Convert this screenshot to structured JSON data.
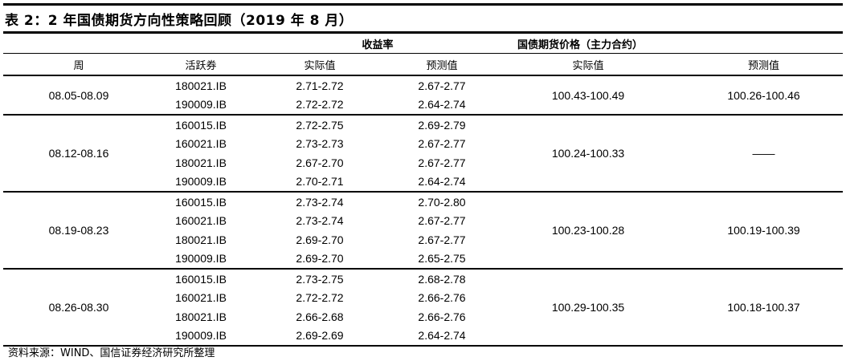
{
  "title": "表 2：2 年国债期货方向性策略回顾（2019 年 8 月）",
  "header": {
    "group_yield": "收益率",
    "group_price": "国债期货价格（主力合约）",
    "columns": [
      "周",
      "活跃券",
      "实际值",
      "预测值",
      "实际值",
      "预测值"
    ]
  },
  "groups": [
    {
      "week": "08.05-08.09",
      "price_actual": "100.43-100.49",
      "price_forecast": "100.26-100.46",
      "rows": [
        [
          "180021.IB",
          "2.71-2.72",
          "2.67-2.77"
        ],
        [
          "190009.IB",
          "2.72-2.72",
          "2.64-2.74"
        ]
      ]
    },
    {
      "week": "08.12-08.16",
      "price_actual": "100.24-100.33",
      "price_forecast": "——",
      "rows": [
        [
          "160015.IB",
          "2.72-2.75",
          "2.69-2.79"
        ],
        [
          "160021.IB",
          "2.73-2.73",
          "2.67-2.77"
        ],
        [
          "180021.IB",
          "2.67-2.70",
          "2.67-2.77"
        ],
        [
          "190009.IB",
          "2.70-2.71",
          "2.64-2.74"
        ]
      ]
    },
    {
      "week": "08.19-08.23",
      "price_actual": "100.23-100.28",
      "price_forecast": "100.19-100.39",
      "rows": [
        [
          "160015.IB",
          "2.73-2.74",
          "2.70-2.80"
        ],
        [
          "160021.IB",
          "2.73-2.74",
          "2.67-2.77"
        ],
        [
          "180021.IB",
          "2.69-2.70",
          "2.67-2.77"
        ],
        [
          "190009.IB",
          "2.69-2.70",
          "2.65-2.75"
        ]
      ]
    },
    {
      "week": "08.26-08.30",
      "price_actual": "100.29-100.35",
      "price_forecast": "100.18-100.37",
      "rows": [
        [
          "160015.IB",
          "2.73-2.75",
          "2.68-2.78"
        ],
        [
          "160021.IB",
          "2.72-2.72",
          "2.66-2.76"
        ],
        [
          "180021.IB",
          "2.66-2.68",
          "2.66-2.76"
        ],
        [
          "190009.IB",
          "2.69-2.69",
          "2.64-2.74"
        ]
      ]
    }
  ],
  "footer": "资料来源：WIND、国信证券经济研究所整理"
}
